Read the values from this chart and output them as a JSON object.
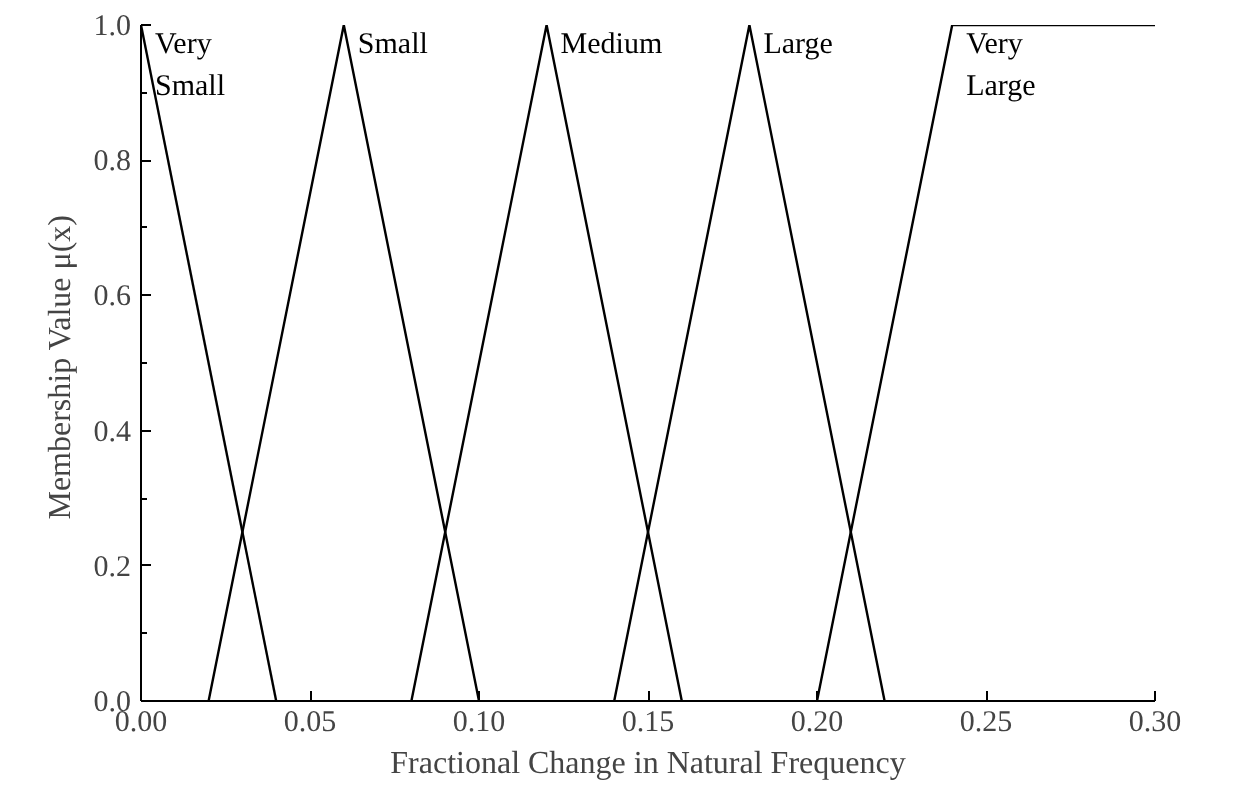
{
  "chart_data": {
    "type": "line",
    "xlabel": "Fractional Change in Natural Frequency",
    "ylabel": "Membership Value  μ(x)",
    "xlim": [
      0,
      0.3
    ],
    "ylim": [
      0,
      1
    ],
    "xticks": [
      {
        "value": 0,
        "label": "0.00"
      },
      {
        "value": 0.05,
        "label": "0.05"
      },
      {
        "value": 0.1,
        "label": "0.10"
      },
      {
        "value": 0.15,
        "label": "0.15"
      },
      {
        "value": 0.2,
        "label": "0.20"
      },
      {
        "value": 0.25,
        "label": "0.25"
      },
      {
        "value": 0.3,
        "label": "0.30"
      }
    ],
    "yticks": [
      {
        "value": 0,
        "label": "0.0"
      },
      {
        "value": 0.2,
        "label": "0.2"
      },
      {
        "value": 0.4,
        "label": "0.4"
      },
      {
        "value": 0.6,
        "label": "0.6"
      },
      {
        "value": 0.8,
        "label": "0.8"
      },
      {
        "value": 1,
        "label": "1.0"
      }
    ],
    "grid": false,
    "marker": "none",
    "line_style": "solid",
    "series": [
      {
        "name": "Very Small",
        "color": "#000000",
        "x": [
          0,
          0.04
        ],
        "values": [
          1,
          0
        ]
      },
      {
        "name": "Small",
        "color": "#000000",
        "x": [
          0.02,
          0.06,
          0.1
        ],
        "values": [
          0,
          1,
          0
        ]
      },
      {
        "name": "Medium",
        "color": "#000000",
        "x": [
          0.08,
          0.12,
          0.16
        ],
        "values": [
          0,
          1,
          0
        ]
      },
      {
        "name": "Large",
        "color": "#000000",
        "x": [
          0.14,
          0.18,
          0.22
        ],
        "values": [
          0,
          1,
          0
        ]
      },
      {
        "name": "Very Large",
        "color": "#000000",
        "x": [
          0.2,
          0.24,
          0.3
        ],
        "values": [
          0,
          1,
          1
        ]
      }
    ]
  }
}
